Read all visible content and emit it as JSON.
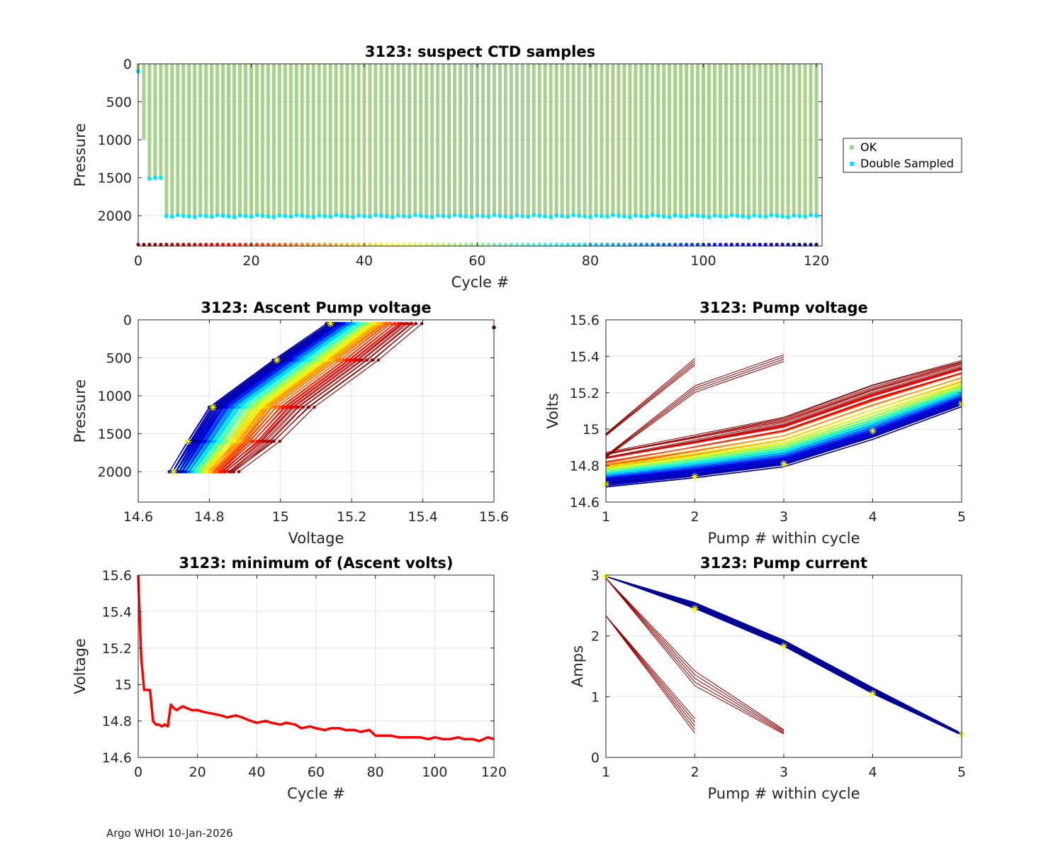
{
  "footer": "Argo WHOI 10-Jan-2026",
  "chart_data": [
    {
      "id": "ctd",
      "type": "scatter",
      "title": "3123: suspect CTD samples",
      "xlabel": "Cycle #",
      "ylabel": "Pressure",
      "xlim": [
        0,
        121
      ],
      "ylim": [
        2400,
        0
      ],
      "xticks": [
        "0",
        "20",
        "40",
        "60",
        "80",
        "100",
        "120"
      ],
      "yticks": [
        "0",
        "500",
        "1000",
        "1500",
        "2000"
      ],
      "grid": true,
      "legend": {
        "position": "outside-right",
        "entries": [
          {
            "label": "OK",
            "color": "#a9d08e"
          },
          {
            "label": "Double Sampled",
            "color": "#00e5ff"
          }
        ]
      },
      "ok_profiles": [
        {
          "cycles": [
            0,
            0
          ],
          "max_pressure": 100
        },
        {
          "cycles": [
            1,
            1
          ],
          "max_pressure": 1000
        },
        {
          "cycles": [
            2,
            4
          ],
          "max_pressure": 1500
        },
        {
          "cycles": [
            5,
            120
          ],
          "max_pressure": 2000
        }
      ],
      "double_sampled": [
        {
          "cycle": 0,
          "pressure": 100
        },
        {
          "cycle": 2,
          "pressure": 1510
        },
        {
          "cycle": 3,
          "pressure": 1500
        },
        {
          "cycle": 4,
          "pressure": 1500
        },
        {
          "cycles_from": 5,
          "cycles_to": 120,
          "pressure": 2005
        }
      ],
      "cycle_colorbar": {
        "pressure": 2380,
        "cycles_from": 0,
        "cycles_to": 120,
        "colormap": "jet"
      }
    },
    {
      "id": "ascent",
      "type": "line",
      "title": "3123: Ascent Pump voltage",
      "xlabel": "Voltage",
      "ylabel": "Pressure",
      "xlim": [
        14.6,
        15.6
      ],
      "ylim": [
        2400,
        0
      ],
      "xticks": [
        "14.6",
        "14.8",
        "15",
        "15.2",
        "15.4",
        "15.6"
      ],
      "yticks": [
        "0",
        "500",
        "1000",
        "1500",
        "2000"
      ],
      "grid": true,
      "profile_pressures": [
        2000,
        1600,
        1150,
        530,
        50
      ],
      "early_profile_voltages": [
        14.88,
        15.0,
        15.1,
        15.28,
        15.4
      ],
      "late_profile_voltages": [
        14.7,
        14.75,
        14.81,
        14.99,
        15.14
      ],
      "marked_profile_voltages": [
        14.7,
        14.74,
        14.81,
        14.99,
        15.14
      ],
      "outlier": {
        "voltage": 15.6,
        "pressure": 100
      }
    },
    {
      "id": "pumpv",
      "type": "line",
      "title": "3123: Pump voltage",
      "xlabel": "Pump # within cycle",
      "ylabel": "Volts",
      "xlim": [
        1,
        5
      ],
      "ylim": [
        14.6,
        15.6
      ],
      "xticks": [
        "1",
        "2",
        "3",
        "4",
        "5"
      ],
      "yticks": [
        "14.6",
        "14.8",
        "15",
        "15.2",
        "15.4",
        "15.6"
      ],
      "grid": true,
      "early_cycle_volts": [
        14.88,
        14.98,
        15.08,
        15.26,
        15.39
      ],
      "late_cycle_volts": [
        14.7,
        14.75,
        14.81,
        14.96,
        15.14
      ],
      "marked_cycle_volts": [
        14.7,
        14.74,
        14.81,
        14.99,
        15.14
      ],
      "short_cycles": [
        {
          "pumps": [
            1,
            2
          ],
          "volts": [
            14.97,
            15.37
          ]
        },
        {
          "pumps": [
            1,
            2,
            3
          ],
          "volts": [
            14.85,
            15.22,
            15.39
          ]
        }
      ]
    },
    {
      "id": "minv",
      "type": "line",
      "title": "3123: minimum of (Ascent volts)",
      "xlabel": "Cycle #",
      "ylabel": "Voltage",
      "xlim": [
        0,
        120
      ],
      "ylim": [
        14.6,
        15.6
      ],
      "xticks": [
        "0",
        "20",
        "40",
        "60",
        "80",
        "100",
        "120"
      ],
      "yticks": [
        "14.6",
        "14.8",
        "15",
        "15.2",
        "15.4",
        "15.6"
      ],
      "grid": true,
      "series": [
        {
          "name": "minimum ascent volts",
          "color": "#ff0000",
          "x": [
            0,
            1,
            2,
            3,
            4,
            5,
            6,
            7,
            8,
            9,
            10,
            11,
            12,
            13,
            15,
            18,
            20,
            22,
            25,
            28,
            30,
            33,
            35,
            38,
            40,
            43,
            45,
            48,
            50,
            53,
            55,
            58,
            60,
            63,
            65,
            68,
            70,
            73,
            75,
            78,
            80,
            83,
            85,
            88,
            90,
            93,
            95,
            98,
            100,
            103,
            105,
            108,
            110,
            113,
            115,
            118,
            120
          ],
          "y": [
            15.6,
            15.15,
            14.97,
            14.97,
            14.97,
            14.8,
            14.78,
            14.78,
            14.77,
            14.78,
            14.77,
            14.89,
            14.87,
            14.86,
            14.88,
            14.86,
            14.86,
            14.85,
            14.84,
            14.83,
            14.82,
            14.83,
            14.82,
            14.8,
            14.79,
            14.8,
            14.79,
            14.78,
            14.79,
            14.78,
            14.76,
            14.77,
            14.76,
            14.75,
            14.76,
            14.76,
            14.75,
            14.75,
            14.74,
            14.75,
            14.72,
            14.72,
            14.72,
            14.71,
            14.71,
            14.71,
            14.71,
            14.7,
            14.71,
            14.7,
            14.7,
            14.71,
            14.7,
            14.7,
            14.69,
            14.71,
            14.7
          ]
        }
      ]
    },
    {
      "id": "pumpc",
      "type": "line",
      "title": "3123: Pump current",
      "xlabel": "Pump # within cycle",
      "ylabel": "Amps",
      "xlim": [
        1,
        5
      ],
      "ylim": [
        0,
        3
      ],
      "xticks": [
        "1",
        "2",
        "3",
        "4",
        "5"
      ],
      "yticks": [
        "0",
        "1",
        "2",
        "3"
      ],
      "grid": true,
      "typical_amps": [
        2.98,
        2.5,
        1.88,
        1.1,
        0.38
      ],
      "marked_amps": [
        2.98,
        2.45,
        1.83,
        1.05,
        0.38
      ],
      "short_cycles": [
        {
          "pumps": [
            1,
            2
          ],
          "amps": [
            2.33,
            0.52
          ]
        },
        {
          "pumps": [
            1,
            2,
            3
          ],
          "amps": [
            2.95,
            1.3,
            0.42
          ]
        }
      ]
    }
  ]
}
